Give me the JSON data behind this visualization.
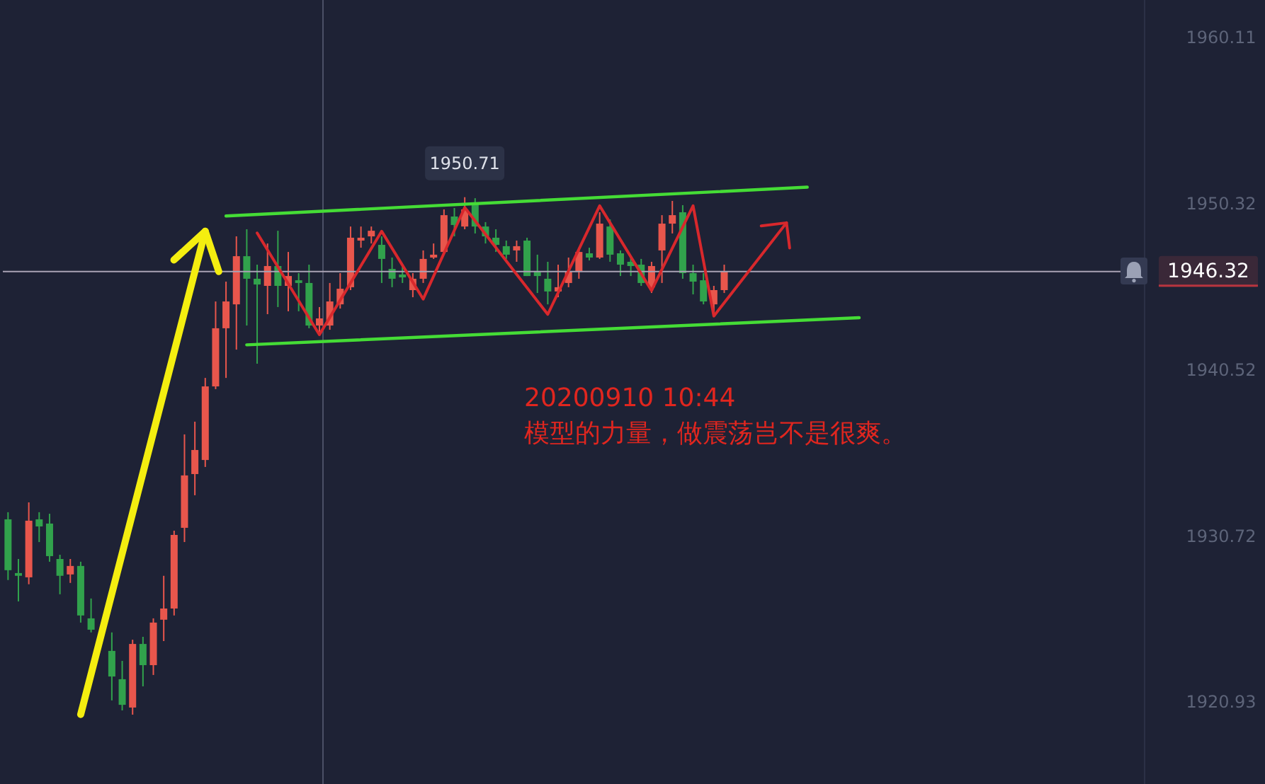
{
  "chart_data": {
    "type": "candlestick",
    "categories": [
      null,
      null,
      null,
      null,
      null,
      null,
      null,
      null,
      null,
      null,
      null,
      null,
      null,
      null,
      null,
      null,
      null,
      null,
      null,
      null,
      null,
      null,
      null,
      null,
      null,
      null,
      null,
      null,
      null,
      null,
      null,
      null,
      null,
      null,
      null,
      null,
      null,
      null,
      null,
      null,
      null,
      null,
      null,
      null,
      null,
      null,
      null,
      null,
      null,
      null,
      null,
      null,
      null,
      null,
      null,
      null,
      null,
      null,
      null,
      null,
      null,
      null,
      null,
      null,
      null,
      null,
      null,
      null,
      null,
      null,
      null,
      null,
      null,
      null,
      null,
      null,
      null,
      null,
      null,
      null,
      null,
      null,
      null,
      null,
      null,
      null,
      null,
      null,
      null,
      null,
      null,
      null,
      null,
      null,
      null,
      null,
      null,
      null,
      null,
      null,
      null,
      null,
      null,
      null,
      null,
      null,
      null,
      null,
      null,
      null
    ],
    "ohlc": [
      [
        1931.71,
        1932.13,
        1928.13,
        1928.71
      ],
      [
        1928.54,
        1929.37,
        1926.87,
        1928.38
      ],
      [
        1928.29,
        1932.71,
        1927.88,
        1931.63
      ],
      [
        1931.71,
        1932.13,
        1930.37,
        1931.29
      ],
      [
        1931.46,
        1932.04,
        1929.21,
        1929.54
      ],
      [
        1929.37,
        1929.62,
        1927.29,
        1928.38
      ],
      [
        1928.46,
        1929.37,
        1927.96,
        1928.96
      ],
      [
        1928.96,
        1929.21,
        1925.62,
        1926.04
      ],
      [
        1925.87,
        1927.04,
        1925.04,
        1925.2
      ],
      null,
      [
        1923.95,
        1925.04,
        1921.03,
        1922.44
      ],
      [
        1922.28,
        1923.36,
        1920.44,
        1920.77
      ],
      [
        1920.61,
        1924.61,
        1920.19,
        1924.36
      ],
      [
        1924.36,
        1924.78,
        1921.86,
        1923.11
      ],
      [
        1923.11,
        1925.87,
        1922.53,
        1925.62
      ],
      [
        1925.79,
        1928.38,
        1924.53,
        1926.45
      ],
      [
        1926.45,
        1931.04,
        1926.04,
        1930.79
      ],
      [
        1931.21,
        1936.72,
        1930.37,
        1934.3
      ],
      [
        1934.38,
        1937.47,
        1933.13,
        1935.8
      ],
      [
        1935.21,
        1940.05,
        1934.8,
        1939.55
      ],
      [
        1939.55,
        1944.56,
        1939.39,
        1942.98
      ],
      [
        1942.98,
        1945.73,
        1940.05,
        1944.56
      ],
      [
        1944.39,
        1948.4,
        1941.72,
        1947.23
      ],
      [
        1947.23,
        1948.82,
        1943.14,
        1945.9
      ],
      [
        1945.9,
        1946.73,
        1940.89,
        1945.56
      ],
      [
        1945.48,
        1947.98,
        1943.81,
        1946.65
      ],
      [
        1946.65,
        1948.73,
        1944.23,
        1945.48
      ],
      [
        1945.48,
        1947.48,
        1943.98,
        1946.06
      ],
      [
        1945.81,
        1946.23,
        1943.98,
        1945.65
      ],
      [
        1945.65,
        1946.73,
        1942.98,
        1943.14
      ],
      [
        1943.14,
        1944.23,
        1942.56,
        1943.56
      ],
      [
        1943.14,
        1945.65,
        1942.89,
        1944.56
      ],
      [
        1944.39,
        1946.23,
        1944.14,
        1945.31
      ],
      [
        1945.4,
        1948.98,
        1945.23,
        1948.32
      ],
      [
        1948.15,
        1948.98,
        1947.73,
        1948.32
      ],
      [
        1948.4,
        1948.98,
        1947.98,
        1948.73
      ],
      [
        1947.9,
        1948.4,
        1945.65,
        1947.07
      ],
      [
        1946.48,
        1947.15,
        1945.4,
        1945.9
      ],
      [
        1946.15,
        1946.65,
        1945.65,
        1945.98
      ],
      [
        1945.23,
        1946.23,
        1944.81,
        1945.9
      ],
      [
        1945.9,
        1947.57,
        1945.65,
        1947.07
      ],
      [
        1947.15,
        1947.98,
        1947.07,
        1947.32
      ],
      [
        1947.48,
        1949.99,
        1947.32,
        1949.65
      ],
      [
        1949.57,
        1950.07,
        1948.4,
        1949.07
      ],
      [
        1948.98,
        1950.71,
        1948.82,
        1949.99
      ],
      [
        1950.4,
        1950.65,
        1948.57,
        1948.98
      ],
      [
        1948.98,
        1949.24,
        1947.98,
        1948.4
      ],
      [
        1948.32,
        1948.82,
        1947.48,
        1947.9
      ],
      [
        1947.82,
        1948.15,
        1947.07,
        1947.32
      ],
      [
        1947.57,
        1948.15,
        1946.9,
        1947.82
      ],
      [
        1948.15,
        1948.32,
        1946.06,
        1946.06
      ],
      [
        1946.31,
        1947.32,
        1945.06,
        1946.06
      ],
      [
        1945.9,
        1946.9,
        1944.39,
        1945.15
      ],
      [
        1945.15,
        1946.73,
        1944.81,
        1945.4
      ],
      [
        1945.65,
        1947.15,
        1945.4,
        1946.31
      ],
      [
        1946.31,
        1947.73,
        1945.9,
        1947.48
      ],
      [
        1947.4,
        1947.73,
        1946.98,
        1947.15
      ],
      [
        1947.15,
        1949.82,
        1947.07,
        1949.15
      ],
      [
        1948.98,
        1949.4,
        1946.9,
        1947.32
      ],
      [
        1947.4,
        1947.57,
        1946.06,
        1946.73
      ],
      [
        1946.9,
        1947.15,
        1946.06,
        1946.65
      ],
      [
        1946.73,
        1947.07,
        1945.48,
        1945.65
      ],
      [
        1945.4,
        1946.9,
        1945.06,
        1946.65
      ],
      [
        1947.57,
        1949.65,
        1945.65,
        1949.15
      ],
      [
        1949.15,
        1950.49,
        1948.57,
        1949.65
      ],
      [
        1949.82,
        1950.24,
        1945.9,
        1946.23
      ],
      [
        1946.23,
        1946.73,
        1944.98,
        1945.73
      ],
      [
        1945.81,
        1946.23,
        1944.39,
        1944.56
      ],
      [
        1944.39,
        1945.48,
        1943.81,
        1945.23
      ],
      [
        1945.23,
        1946.73,
        1945.06,
        1946.32
      ],
      null,
      null,
      null,
      null,
      null,
      null,
      null,
      null,
      null,
      null,
      null,
      null,
      null,
      null,
      null,
      null,
      null,
      null,
      null,
      null,
      null,
      null,
      null,
      null,
      null,
      null,
      null,
      null,
      null,
      null,
      null,
      null,
      null,
      null,
      null,
      null,
      null,
      null,
      null,
      null
    ],
    "colors": [
      "#31a24c",
      "#31a24c",
      "#e8564c",
      "#31a24c",
      "#31a24c",
      "#31a24c",
      "#e8564c",
      "#31a24c",
      "#31a24c",
      null,
      "#31a24c",
      "#31a24c",
      "#e8564c",
      "#31a24c",
      "#e8564c",
      "#e8564c",
      "#e8564c",
      "#e8564c",
      "#e8564c",
      "#e8564c",
      "#e8564c",
      "#e8564c",
      "#e8564c",
      "#31a24c",
      "#31a24c",
      "#e8564c",
      "#31a24c",
      "#e8564c",
      "#31a24c",
      "#31a24c",
      "#e8564c",
      "#e8564c",
      "#e8564c",
      "#e8564c",
      "#e8564c",
      "#e8564c",
      "#31a24c",
      "#31a24c",
      "#31a24c",
      "#e8564c",
      "#e8564c",
      "#e8564c",
      "#e8564c",
      "#31a24c",
      "#e8564c",
      "#31a24c",
      "#31a24c",
      "#31a24c",
      "#31a24c",
      "#e8564c",
      "#31a24c",
      "#31a24c",
      "#31a24c",
      "#e8564c",
      "#e8564c",
      "#e8564c",
      "#31a24c",
      "#e8564c",
      "#31a24c",
      "#31a24c",
      "#31a24c",
      "#31a24c",
      "#e8564c",
      "#e8564c",
      "#e8564c",
      "#31a24c",
      "#31a24c",
      "#31a24c",
      "#e8564c",
      "#e8564c",
      null,
      null,
      null,
      null,
      null,
      null,
      null,
      null,
      null,
      null,
      null,
      null,
      null,
      null,
      null,
      null,
      null,
      null,
      null,
      null,
      null,
      null,
      null,
      null,
      null,
      null,
      null,
      null,
      null,
      null,
      null,
      null,
      null,
      null,
      null,
      null,
      null,
      null,
      null,
      null
    ],
    "series": [
      {
        "type": "line",
        "color": "#45dc36",
        "values": [
          null,
          null,
          null,
          null,
          null,
          null,
          null,
          null,
          null,
          null,
          null,
          null,
          null,
          null,
          null,
          null,
          null,
          null,
          null,
          null,
          null,
          1949.6,
          null,
          null,
          null,
          null,
          null,
          null,
          null,
          null,
          null,
          null,
          null,
          null,
          null,
          null,
          null,
          null,
          null,
          null,
          null,
          null,
          null,
          null,
          null,
          null,
          null,
          null,
          null,
          null,
          null,
          null,
          null,
          null,
          null,
          null,
          null,
          null,
          null,
          null,
          null,
          null,
          null,
          null,
          null,
          null,
          null,
          null,
          null,
          null,
          null,
          null,
          null,
          null,
          null,
          null,
          null,
          1951.3,
          null,
          null,
          null,
          null,
          null,
          null,
          null,
          null,
          null,
          null,
          null,
          null,
          null,
          null,
          null,
          null,
          null,
          null,
          null,
          null,
          null,
          null,
          null,
          null,
          null,
          null,
          null,
          null,
          null,
          null,
          null,
          null
        ]
      },
      {
        "type": "line",
        "color": "#45dc36",
        "values": [
          null,
          null,
          null,
          null,
          null,
          null,
          null,
          null,
          null,
          null,
          null,
          null,
          null,
          null,
          null,
          null,
          null,
          null,
          null,
          null,
          null,
          null,
          null,
          1942,
          null,
          null,
          null,
          null,
          null,
          null,
          null,
          null,
          null,
          null,
          null,
          null,
          null,
          null,
          null,
          null,
          null,
          null,
          null,
          null,
          null,
          null,
          null,
          null,
          null,
          null,
          null,
          null,
          null,
          null,
          null,
          null,
          null,
          null,
          null,
          null,
          null,
          null,
          null,
          null,
          null,
          null,
          null,
          null,
          null,
          null,
          null,
          null,
          null,
          null,
          null,
          null,
          null,
          null,
          null,
          null,
          null,
          null,
          1943.6,
          null,
          null,
          null,
          null,
          null,
          null,
          null,
          null,
          null,
          null,
          null,
          null,
          null,
          null,
          null,
          null,
          null,
          null,
          null,
          null,
          null,
          null,
          null,
          null,
          null,
          null,
          null
        ]
      },
      {
        "type": "line",
        "color": "#f4ee10",
        "values": [
          null,
          null,
          null,
          null,
          null,
          null,
          null,
          1920.2,
          null,
          null,
          null,
          null,
          null,
          null,
          null,
          null,
          null,
          null,
          null,
          1948.7,
          null,
          null,
          null,
          null,
          null,
          null,
          null,
          null,
          null,
          null,
          null,
          null,
          null,
          null,
          null,
          null,
          null,
          null,
          null,
          null,
          null,
          null,
          null,
          null,
          null,
          null,
          null,
          null,
          null,
          null,
          null,
          null,
          null,
          null,
          null,
          null,
          null,
          null,
          null,
          null,
          null,
          null,
          null,
          null,
          null,
          null,
          null,
          null,
          null,
          null,
          null,
          null,
          null,
          null,
          null,
          null,
          null,
          null,
          null,
          null,
          null,
          null,
          null,
          null,
          null,
          null,
          null,
          null,
          null,
          null,
          null,
          null,
          null,
          null,
          null,
          null,
          null,
          null,
          null,
          null,
          null,
          null,
          null,
          null,
          null,
          null,
          null,
          null,
          null,
          null
        ]
      },
      {
        "type": "line",
        "color": "#d8282c",
        "values": [
          null,
          null,
          null,
          null,
          null,
          null,
          null,
          null,
          null,
          null,
          null,
          null,
          null,
          null,
          null,
          null,
          null,
          null,
          null,
          null,
          null,
          null,
          null,
          null,
          1948.6,
          null,
          null,
          null,
          null,
          null,
          1942.6,
          null,
          null,
          null,
          null,
          null,
          1948.7,
          null,
          null,
          null,
          1944.7,
          null,
          null,
          null,
          1950.1,
          null,
          null,
          null,
          null,
          null,
          null,
          null,
          1943.8,
          null,
          null,
          null,
          null,
          1950.2,
          null,
          null,
          null,
          null,
          1945.2,
          null,
          null,
          null,
          1950.2,
          null,
          1943.7,
          null,
          null,
          null,
          null,
          null,
          null,
          1949.2,
          null,
          null,
          null,
          null,
          null,
          null,
          null,
          null,
          null,
          null,
          null,
          null,
          null,
          null,
          null,
          null,
          null,
          null,
          null,
          null,
          null,
          null,
          null,
          null,
          null,
          null,
          null,
          null,
          null,
          null,
          null,
          null,
          null,
          null
        ]
      }
    ],
    "ylim": [
      1916.1,
      1962.34
    ],
    "yticks": [
      1960.11,
      1950.32,
      1940.52,
      1930.72,
      1920.93
    ],
    "tick_labels": "y",
    "ref_lines": [
      {
        "axis": "y",
        "value": 1946.32,
        "label": "1946.32",
        "color": "#aaa3b5"
      }
    ],
    "annotations": [
      {
        "text": "1950.71",
        "y": 1950.71
      },
      "20200910 10:44",
      "模型的力量，做震荡岂不是很爽。"
    ]
  }
}
